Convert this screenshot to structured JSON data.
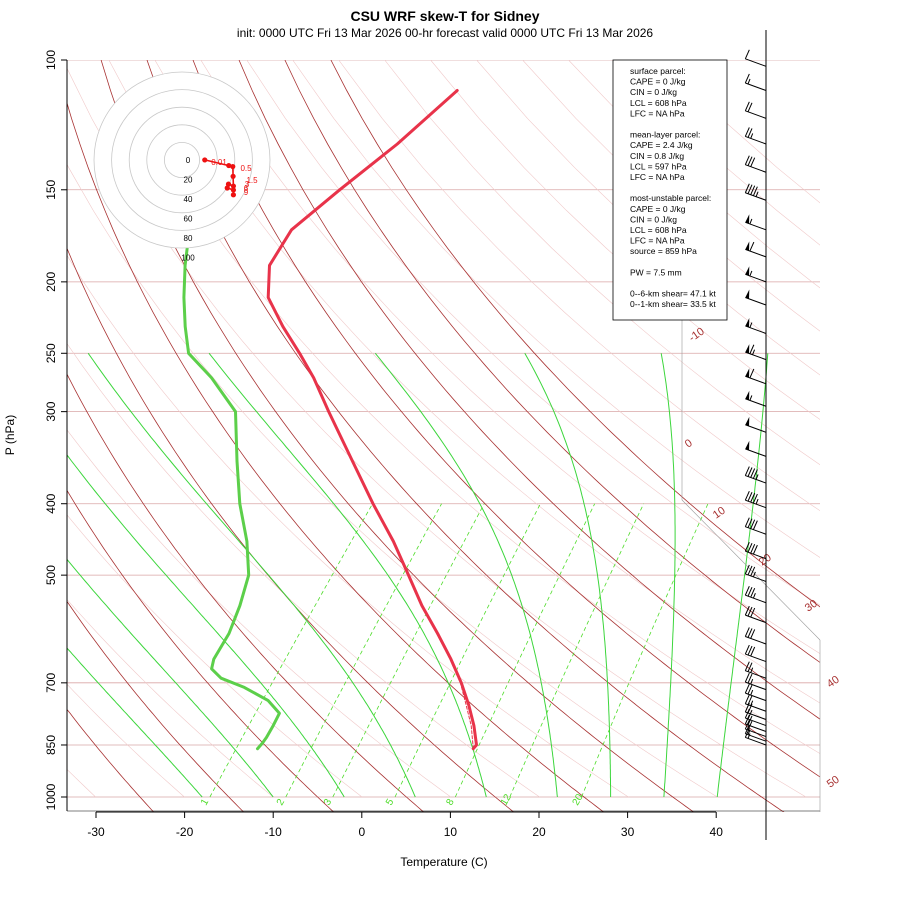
{
  "header": {
    "title": "CSU WRF skew-T for Sidney",
    "subtitle": "init: 0000 UTC Fri 13 Mar 2026     00-hr forecast valid 0000 UTC Fri 13 Mar 2026"
  },
  "colors": {
    "temperature": "#e8334a",
    "dewpoint": "#5ccf4a",
    "isotherm": "#a83232",
    "mixing_ratio": "#4fdc2a",
    "adiabat": "#3cd63c",
    "hodograph": "#ee1111",
    "pressure_grid": "#d9a6a6"
  },
  "chart_data": {
    "type": "line",
    "title": "CSU WRF skew-T for Sidney",
    "xlabel": "Temperature (C)",
    "ylabel": "P (hPa)",
    "xlim": [
      -33,
      51
    ],
    "ylim": [
      1000,
      100
    ],
    "y_scale": "log",
    "x_ticks": [
      -30,
      -20,
      -10,
      0,
      10,
      20,
      30,
      40
    ],
    "x_tick_labels": [
      "-30",
      "-20",
      "-10",
      "0",
      "10",
      "20",
      "30",
      "40"
    ],
    "y_ticks": [
      100,
      150,
      200,
      250,
      300,
      400,
      500,
      700,
      850,
      1000
    ],
    "y_tick_labels": [
      "100",
      "150",
      "200",
      "250",
      "300",
      "400",
      "500",
      "700",
      "850",
      "1000"
    ],
    "isotherm_labels": [
      "-10",
      "0",
      "10",
      "20",
      "30",
      "40",
      "50"
    ],
    "mixing_ratio_labels": [
      "1",
      "2",
      "3",
      "5",
      "8",
      "12",
      "20"
    ],
    "series": [
      {
        "name": "temperature",
        "p": [
          860,
          850,
          800,
          750,
          700,
          650,
          600,
          550,
          500,
          450,
          400,
          350,
          300,
          270,
          250,
          230,
          210,
          190,
          170,
          150,
          130,
          110
        ],
        "t": [
          7.8,
          7.8,
          5.6,
          3.0,
          0.0,
          -3.5,
          -7.5,
          -12.0,
          -16.5,
          -21.5,
          -27.5,
          -34.0,
          -41.5,
          -46.5,
          -50.5,
          -55.0,
          -59.5,
          -62.5,
          -63.5,
          -62.0,
          -60.0,
          -58.5
        ]
      },
      {
        "name": "dewpoint",
        "p": [
          860,
          845,
          830,
          800,
          770,
          740,
          710,
          690,
          670,
          650,
          600,
          550,
          500,
          450,
          400,
          350,
          300,
          270,
          250,
          230,
          210,
          190,
          170
        ],
        "t": [
          -16.5,
          -16.5,
          -16.6,
          -17.0,
          -17.5,
          -20.0,
          -24.0,
          -27.5,
          -29.5,
          -30.2,
          -31.0,
          -32.5,
          -34.5,
          -38.0,
          -42.5,
          -47.0,
          -52.0,
          -58.0,
          -63.0,
          -66.0,
          -69.0,
          -72.0,
          -75.0
        ]
      },
      {
        "name": "parcel",
        "p": [
          860,
          800,
          750,
          700,
          650,
          600
        ],
        "t": [
          7.8,
          5.3,
          2.7,
          -0.1,
          -3.6,
          -7.6
        ]
      }
    ],
    "hodograph": {
      "ring_labels": [
        "0",
        "20",
        "40",
        "60",
        "80",
        "100"
      ],
      "points": [
        [
          -4.3,
          5.6
        ],
        [
          3.5,
          8.5
        ],
        [
          4.8,
          9.0
        ],
        [
          4.9,
          14.0
        ],
        [
          5.0,
          19.0
        ],
        [
          3.4,
          18.0
        ],
        [
          3.0,
          20.0
        ],
        [
          5.0,
          21.0
        ],
        [
          5.0,
          23.5
        ]
      ],
      "point_labels": [
        "0.01",
        "0.5",
        "1.5",
        "3",
        "6",
        "9"
      ]
    },
    "wind_barbs": [
      {
        "p": 102,
        "kt": 10
      },
      {
        "p": 110,
        "kt": 15
      },
      {
        "p": 120,
        "kt": 20
      },
      {
        "p": 130,
        "kt": 25
      },
      {
        "p": 142,
        "kt": 30
      },
      {
        "p": 155,
        "kt": 45
      },
      {
        "p": 170,
        "kt": 55
      },
      {
        "p": 185,
        "kt": 60
      },
      {
        "p": 200,
        "kt": 55
      },
      {
        "p": 215,
        "kt": 50
      },
      {
        "p": 235,
        "kt": 55
      },
      {
        "p": 255,
        "kt": 65
      },
      {
        "p": 275,
        "kt": 60
      },
      {
        "p": 295,
        "kt": 55
      },
      {
        "p": 320,
        "kt": 50
      },
      {
        "p": 345,
        "kt": 50
      },
      {
        "p": 375,
        "kt": 45
      },
      {
        "p": 405,
        "kt": 45
      },
      {
        "p": 440,
        "kt": 40
      },
      {
        "p": 475,
        "kt": 40
      },
      {
        "p": 510,
        "kt": 35
      },
      {
        "p": 545,
        "kt": 35
      },
      {
        "p": 580,
        "kt": 30
      },
      {
        "p": 620,
        "kt": 30
      },
      {
        "p": 655,
        "kt": 30
      },
      {
        "p": 690,
        "kt": 25
      },
      {
        "p": 715,
        "kt": 25
      },
      {
        "p": 740,
        "kt": 25
      },
      {
        "p": 765,
        "kt": 25
      },
      {
        "p": 785,
        "kt": 20
      },
      {
        "p": 800,
        "kt": 20
      },
      {
        "p": 815,
        "kt": 20
      },
      {
        "p": 828,
        "kt": 20
      },
      {
        "p": 840,
        "kt": 15
      },
      {
        "p": 850,
        "kt": 15
      }
    ]
  },
  "info_box": {
    "lines": [
      "surface parcel:",
      "CAPE = 0 J/kg",
      "CIN = 0 J/kg",
      "LCL = 608 hPa",
      "LFC = NA hPa",
      "",
      "mean-layer parcel:",
      "CAPE = 2.4 J/kg",
      "CIN = 0.8 J/kg",
      "LCL = 597 hPa",
      "LFC = NA hPa",
      "",
      "most-unstable parcel:",
      "CAPE = 0 J/kg",
      "CIN = 0 J/kg",
      "LCL = 608 hPa",
      "LFC = NA hPa",
      "source = 859 hPa",
      "",
      "PW =  7.5 mm",
      "",
      "0--6-km shear= 47.1 kt",
      "0--1-km shear= 33.5 kt"
    ]
  }
}
